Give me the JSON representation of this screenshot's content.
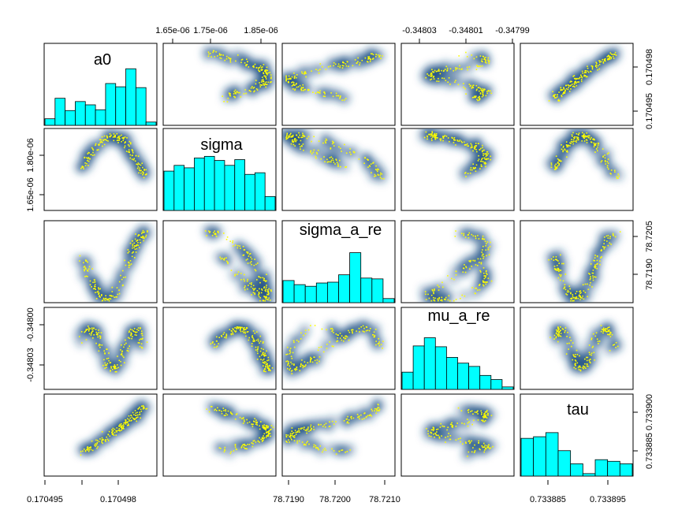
{
  "chart_data": {
    "type": "scatter",
    "variables": [
      "a0",
      "sigma",
      "sigma_a_re",
      "mu_a_re",
      "tau"
    ],
    "colors": {
      "histogram": "#00FFFF",
      "density": "#1d4f85",
      "points": "#FFFF00"
    },
    "histograms": [
      [
        0.08,
        0.33,
        0.18,
        0.29,
        0.25,
        0.19,
        0.51,
        0.47,
        0.69,
        0.46,
        0.04
      ],
      [
        0.48,
        0.55,
        0.52,
        0.64,
        0.66,
        0.61,
        0.55,
        0.62,
        0.44,
        0.46,
        0.17
      ],
      [
        0.27,
        0.22,
        0.2,
        0.24,
        0.25,
        0.34,
        0.61,
        0.3,
        0.29,
        0.05
      ],
      [
        0.21,
        0.53,
        0.63,
        0.52,
        0.39,
        0.32,
        0.28,
        0.17,
        0.12,
        0.03
      ],
      [
        0.46,
        0.48,
        0.53,
        0.31,
        0.15,
        0.03,
        0.2,
        0.18,
        0.15
      ]
    ],
    "axes": [
      {
        "var": "a0",
        "side": "bottom",
        "ticks": [
          "0.170495",
          "0.170498"
        ]
      },
      {
        "var": "sigma",
        "side": "top",
        "ticks": [
          "1.65e-06",
          "1.75e-06",
          "1.85e-06"
        ]
      },
      {
        "var": "sigma_a_re",
        "side": "bottom",
        "ticks": [
          "78.7190",
          "78.7200",
          "78.7210"
        ]
      },
      {
        "var": "mu_a_re",
        "side": "top",
        "ticks": [
          "-0.34803",
          "-0.34801",
          "-0.34799"
        ]
      },
      {
        "var": "tau",
        "side": "bottom",
        "ticks": [
          "0.733885",
          "0.733895"
        ]
      },
      {
        "var": "a0",
        "side": "right",
        "ticks": [
          "0.170495",
          "0.170498"
        ]
      },
      {
        "var": "sigma",
        "side": "left",
        "ticks": [
          "1.65e-06",
          "1.80e-06"
        ]
      },
      {
        "var": "sigma_a_re",
        "side": "right",
        "ticks": [
          "78.7190",
          "78.7205"
        ]
      },
      {
        "var": "mu_a_re",
        "side": "left",
        "ticks": [
          "-0.34803",
          "-0.34800"
        ]
      },
      {
        "var": "tau",
        "side": "right",
        "ticks": [
          "0.733885",
          "0.733900"
        ]
      }
    ]
  }
}
